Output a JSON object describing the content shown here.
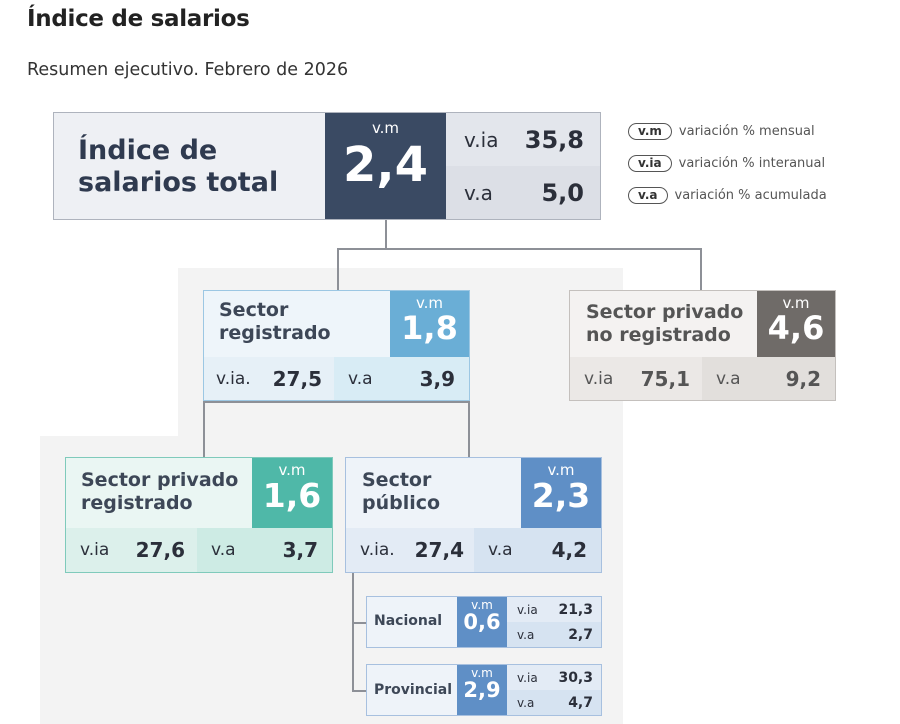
{
  "title": "Índice de salarios",
  "subtitle": "Resumen ejecutivo. Febrero de 2026",
  "legend": [
    {
      "tag": "v.m",
      "text": "variación % mensual"
    },
    {
      "tag": "v.ia",
      "text": "variación % interanual"
    },
    {
      "tag": "v.a",
      "text": "variación % acumulada"
    }
  ],
  "total": {
    "name_l1": "Índice de",
    "name_l2": "salarios total",
    "vm_label": "v.m",
    "vm": "2,4",
    "via_label": "v.ia",
    "via": "35,8",
    "va_label": "v.a",
    "va": "5,0"
  },
  "registrado": {
    "name_l1": "Sector",
    "name_l2": "registrado",
    "vm_label": "v.m",
    "vm": "1,8",
    "via_label": "v.ia.",
    "via": "27,5",
    "va_label": "v.a",
    "va": "3,9"
  },
  "no_registrado": {
    "name_l1": "Sector privado",
    "name_l2": "no registrado",
    "vm_label": "v.m",
    "vm": "4,6",
    "via_label": "v.ia",
    "via": "75,1",
    "va_label": "v.a",
    "va": "9,2"
  },
  "privado_registrado": {
    "name_l1": "Sector privado",
    "name_l2": "registrado",
    "vm_label": "v.m",
    "vm": "1,6",
    "via_label": "v.ia",
    "via": "27,6",
    "va_label": "v.a",
    "va": "3,7"
  },
  "publico": {
    "name_l1": "Sector",
    "name_l2": "público",
    "vm_label": "v.m",
    "vm": "2,3",
    "via_label": "v.ia.",
    "via": "27,4",
    "va_label": "v.a",
    "va": "4,2"
  },
  "nacional": {
    "name": "Nacional",
    "vm_label": "v.m",
    "vm": "0,6",
    "via_label": "v.ia",
    "via": "21,3",
    "va_label": "v.a",
    "va": "2,7"
  },
  "provincial": {
    "name": "Provincial",
    "vm_label": "v.m",
    "vm": "2,9",
    "via_label": "v.ia",
    "via": "30,3",
    "va_label": "v.a",
    "va": "4,7"
  },
  "colors": {
    "total": "#3a4a63",
    "registrado": "#6aaed6",
    "no_registrado": "#6f6b68",
    "privado_registrado": "#4fb8a8",
    "publico": "#5f8fc6"
  }
}
